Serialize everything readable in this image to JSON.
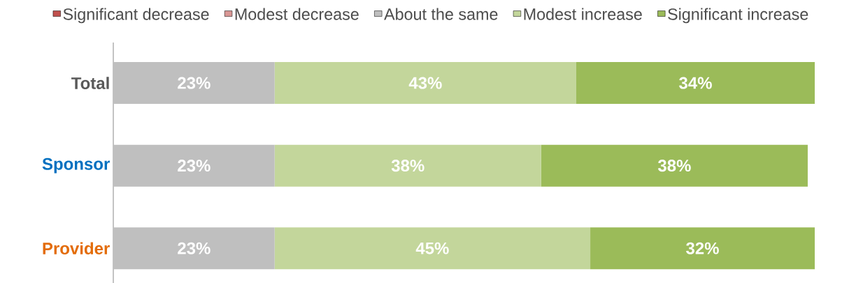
{
  "chart_data": {
    "type": "bar",
    "orientation": "horizontal",
    "stacked": true,
    "categories": [
      "Total",
      "Sponsor",
      "Provider"
    ],
    "tick_labels": "y",
    "legend": "top",
    "series": [
      {
        "name": "Significant decrease",
        "color": "#c0504d",
        "values": [
          null,
          null,
          null
        ],
        "value_labels": [
          null,
          null,
          null
        ]
      },
      {
        "name": "Modest decrease",
        "color": "#d99694",
        "values": [
          null,
          null,
          null
        ],
        "value_labels": [
          null,
          null,
          null
        ]
      },
      {
        "name": "About the same",
        "color": "#bfbfbf",
        "values": [
          23,
          23,
          23
        ],
        "value_labels": [
          "23%",
          "23%",
          "23%"
        ]
      },
      {
        "name": "Modest increase",
        "color": "#c3d69b",
        "values": [
          43,
          38,
          45
        ],
        "value_labels": [
          "43%",
          "38%",
          "45%"
        ]
      },
      {
        "name": "Significant increase",
        "color": "#9bbb59",
        "values": [
          34,
          38,
          32
        ],
        "value_labels": [
          "34%",
          "38%",
          "32%"
        ]
      }
    ]
  }
}
